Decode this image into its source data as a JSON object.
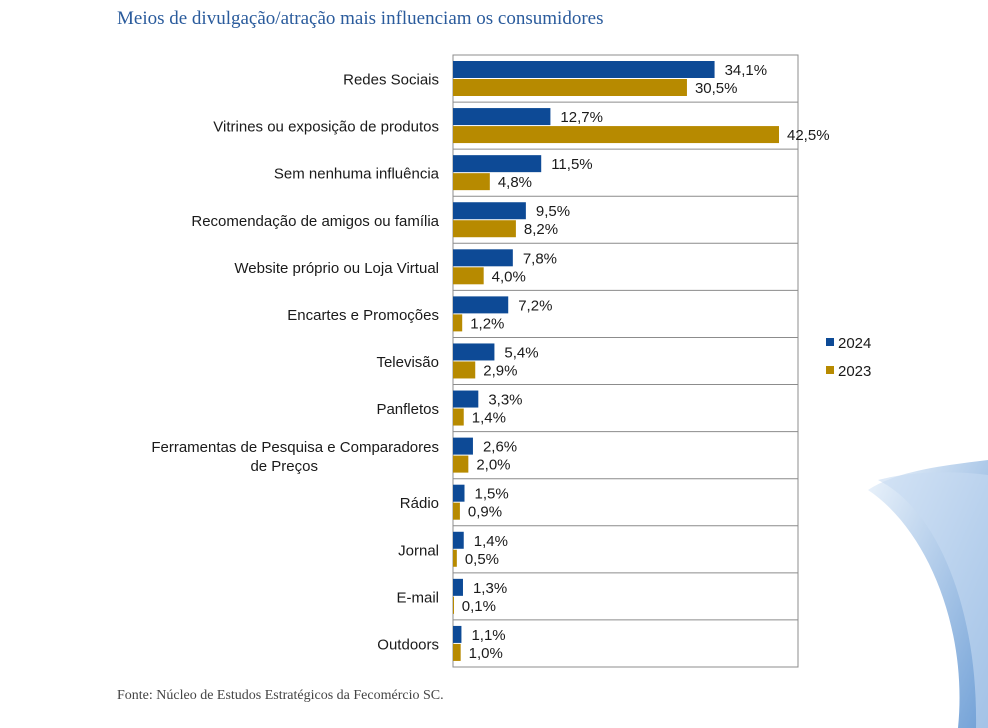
{
  "title": "Meios de divulgação/atração mais influenciam os consumidores",
  "source": "Fonte: Núcleo de Estudos Estratégicos da Fecomércio SC.",
  "colors": {
    "2024": "#0d4a96",
    "2023": "#b78a00"
  },
  "chart_data": {
    "type": "bar",
    "orientation": "horizontal",
    "title": "Meios de divulgação/atração mais influenciam os consumidores",
    "categories": [
      "Redes Sociais",
      "Vitrines ou exposição de produtos",
      "Sem nenhuma influência",
      "Recomendação de amigos ou família",
      "Website próprio ou Loja Virtual",
      "Encartes e Promoções",
      "Televisão",
      "Panfletos",
      "Ferramentas de Pesquisa e Comparadores de Preços",
      "Rádio",
      "Jornal",
      "E-mail",
      "Outdoors"
    ],
    "series": [
      {
        "name": "2024",
        "values": [
          34.1,
          12.7,
          11.5,
          9.5,
          7.8,
          7.2,
          5.4,
          3.3,
          2.6,
          1.5,
          1.4,
          1.3,
          1.1
        ],
        "labels": [
          "34,1%",
          "12,7%",
          "11,5%",
          "9,5%",
          "7,8%",
          "7,2%",
          "5,4%",
          "3,3%",
          "2,6%",
          "1,5%",
          "1,4%",
          "1,3%",
          "1,1%"
        ]
      },
      {
        "name": "2023",
        "values": [
          30.5,
          42.5,
          4.8,
          8.2,
          4.0,
          1.2,
          2.9,
          1.4,
          2.0,
          0.9,
          0.5,
          0.1,
          1.0
        ],
        "labels": [
          "30,5%",
          "42,5%",
          "4,8%",
          "8,2%",
          "4,0%",
          "1,2%",
          "2,9%",
          "1,4%",
          "2,0%",
          "0,9%",
          "0,5%",
          "0,1%",
          "1,0%"
        ]
      }
    ],
    "xlim": [
      0,
      45
    ],
    "legend": "right"
  }
}
